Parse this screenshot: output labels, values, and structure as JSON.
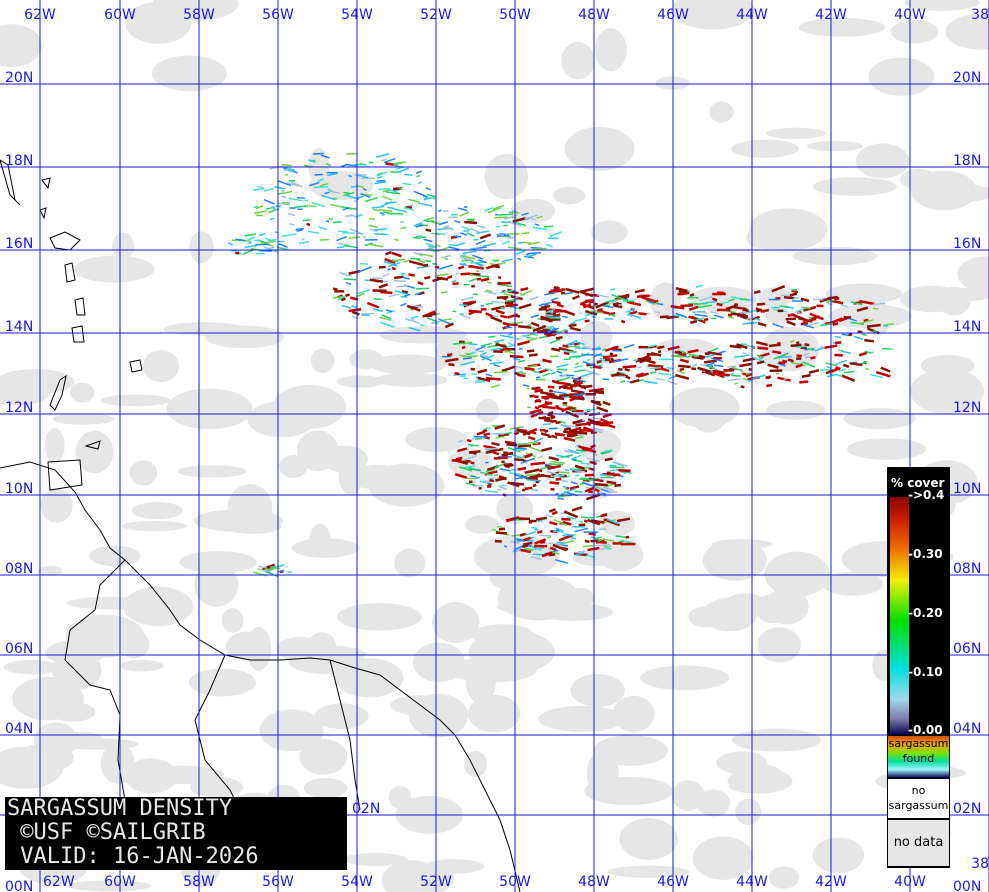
{
  "title": {
    "line1": "SARGASSUM DENSITY",
    "line2": " ©USF ©SAILGRIB",
    "line3": " VALID: 16-JAN-2026"
  },
  "longitude_labels": [
    "62W",
    "60W",
    "58W",
    "56W",
    "54W",
    "52W",
    "50W",
    "48W",
    "46W",
    "44W",
    "42W",
    "40W",
    "38"
  ],
  "latitude_labels": [
    "20N",
    "18N",
    "16N",
    "14N",
    "12N",
    "10N",
    "08N",
    "06N",
    "04N",
    "02N",
    "00N"
  ],
  "legend": {
    "header": "% cover",
    "ticks": [
      "->0.4",
      "-0.30",
      "-0.20",
      "-0.10",
      "-0.00"
    ],
    "found_label": "sargassum found",
    "no_sargassum_label": "no sargassum",
    "no_data_label": "no data"
  },
  "colors": {
    "grid": "#1a1adf",
    "no_data": "#e6e6e6",
    "high_density": "#c00000",
    "low_density": "#40e0d0",
    "coastline": "#000000"
  }
}
